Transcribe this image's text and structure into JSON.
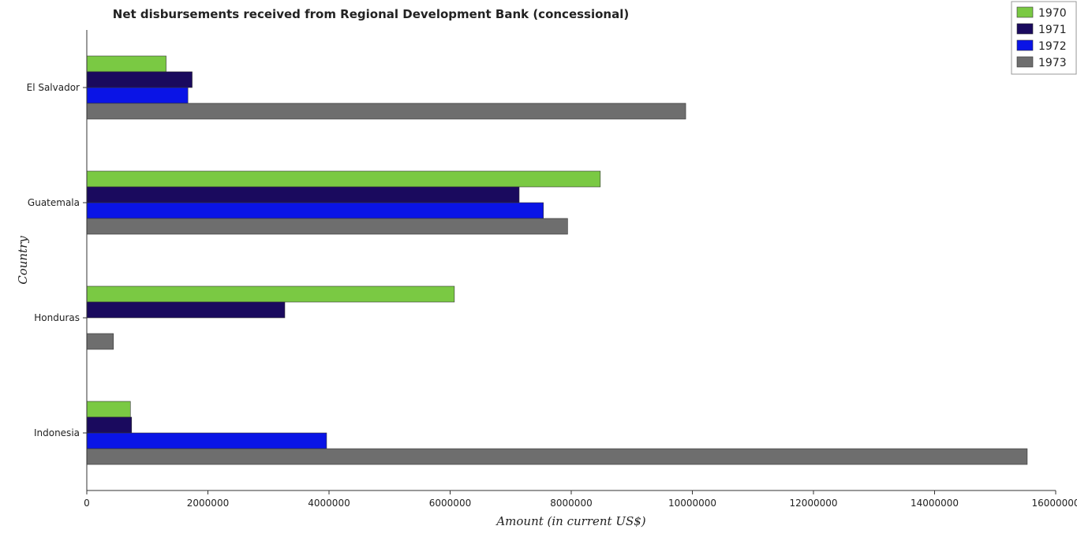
{
  "chart_data": {
    "type": "bar",
    "orientation": "horizontal",
    "title": "Net disbursements received from Regional Development Bank (concessional)",
    "xlabel": "Amount (in current US$)",
    "ylabel": "Country",
    "categories": [
      "El Salvador",
      "Guatemala",
      "Honduras",
      "Indonesia"
    ],
    "series": [
      {
        "name": "1970",
        "color": "#7ac943",
        "values": [
          1310000,
          8480000,
          6070000,
          720000
        ]
      },
      {
        "name": "1971",
        "color": "#1a0a5e",
        "values": [
          1740000,
          7140000,
          3270000,
          740000
        ]
      },
      {
        "name": "1972",
        "color": "#0a14e6",
        "values": [
          1670000,
          7540000,
          0,
          3960000
        ]
      },
      {
        "name": "1973",
        "color": "#6e6e6e",
        "values": [
          9890000,
          7940000,
          440000,
          15530000
        ]
      }
    ],
    "xlim": [
      0,
      16000000
    ],
    "xticks": [
      0,
      2000000,
      4000000,
      6000000,
      8000000,
      10000000,
      12000000,
      14000000,
      16000000
    ],
    "xtick_labels": [
      "0",
      "2000000",
      "4000000",
      "6000000",
      "8000000",
      "10000000",
      "12000000",
      "14000000",
      "16000000"
    ],
    "grid": false,
    "legend_position": "top-right"
  }
}
